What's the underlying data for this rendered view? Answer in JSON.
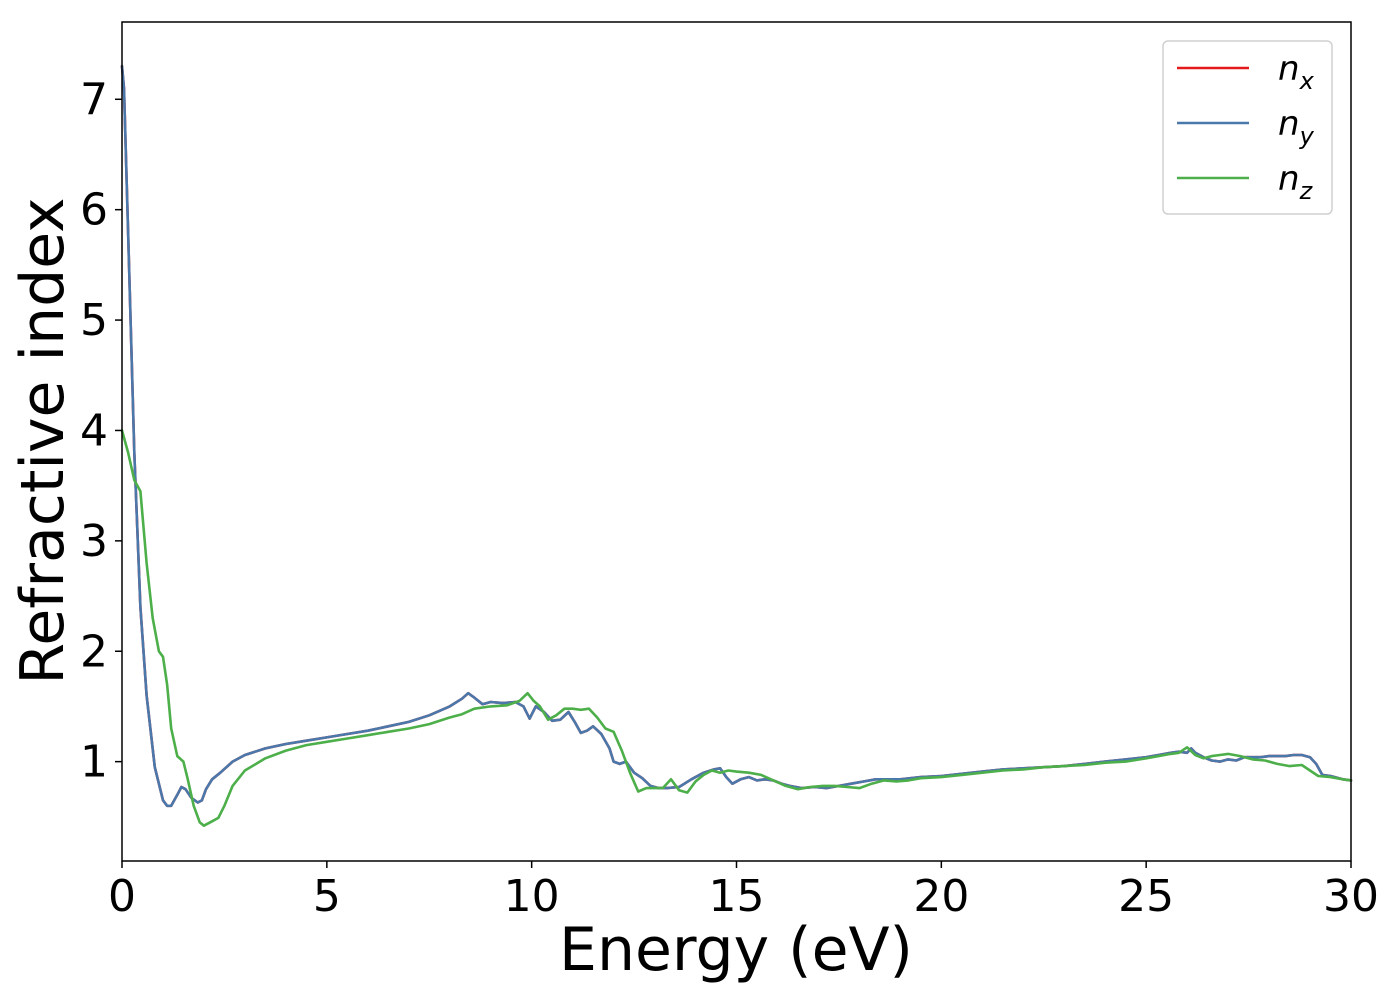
{
  "chart_data": {
    "type": "line",
    "title": "",
    "xlabel": "Energy (eV)",
    "ylabel": "Refractive index",
    "xlim": [
      0,
      30
    ],
    "ylim": [
      0.1,
      7.7
    ],
    "xticks": [
      0,
      5,
      10,
      15,
      20,
      25,
      30
    ],
    "xtick_labels": [
      "0",
      "5",
      "10",
      "15",
      "20",
      "25",
      "30"
    ],
    "yticks": [
      1,
      2,
      3,
      4,
      5,
      6,
      7
    ],
    "ytick_labels": [
      "1",
      "2",
      "3",
      "4",
      "5",
      "6",
      "7"
    ],
    "grid": false,
    "legend_position": "top-right",
    "series": [
      {
        "name": "n_x",
        "legend_main": "n",
        "legend_sub": "x",
        "color": "#e41a1c",
        "x": [
          0,
          0.05,
          0.15,
          0.3,
          0.45,
          0.6,
          0.8,
          1.0,
          1.1,
          1.2,
          1.35,
          1.45,
          1.55,
          1.7,
          1.85,
          1.95,
          2.05,
          2.2,
          2.4,
          2.7,
          3.0,
          3.5,
          4.0,
          4.5,
          5.0,
          5.5,
          6.0,
          6.5,
          7.0,
          7.5,
          8.0,
          8.3,
          8.45,
          8.6,
          8.8,
          9.0,
          9.3,
          9.6,
          9.8,
          9.95,
          10.1,
          10.3,
          10.5,
          10.7,
          10.9,
          11.05,
          11.2,
          11.35,
          11.5,
          11.7,
          11.9,
          12.0,
          12.15,
          12.3,
          12.5,
          12.7,
          12.9,
          13.1,
          13.3,
          13.6,
          13.9,
          14.2,
          14.45,
          14.6,
          14.75,
          14.9,
          15.1,
          15.3,
          15.5,
          15.7,
          15.9,
          16.1,
          16.3,
          16.6,
          16.9,
          17.2,
          17.5,
          17.8,
          18.1,
          18.4,
          18.7,
          19.0,
          19.5,
          20.0,
          20.5,
          21.0,
          21.5,
          22.0,
          22.5,
          23.0,
          23.5,
          24.0,
          24.5,
          25.0,
          25.3,
          25.6,
          25.8,
          26.0,
          26.1,
          26.2,
          26.4,
          26.6,
          26.8,
          27.0,
          27.2,
          27.4,
          27.6,
          27.8,
          28.0,
          28.2,
          28.4,
          28.6,
          28.8,
          29.0,
          29.15,
          29.3,
          29.5,
          29.8,
          30.0
        ],
        "y": [
          7.3,
          7.1,
          5.8,
          3.8,
          2.4,
          1.6,
          0.95,
          0.65,
          0.6,
          0.6,
          0.7,
          0.77,
          0.75,
          0.67,
          0.63,
          0.65,
          0.75,
          0.84,
          0.9,
          1.0,
          1.06,
          1.12,
          1.16,
          1.19,
          1.22,
          1.25,
          1.28,
          1.32,
          1.36,
          1.42,
          1.5,
          1.57,
          1.62,
          1.58,
          1.52,
          1.54,
          1.53,
          1.54,
          1.5,
          1.39,
          1.5,
          1.45,
          1.37,
          1.38,
          1.45,
          1.36,
          1.26,
          1.28,
          1.32,
          1.25,
          1.12,
          1.0,
          0.98,
          1.0,
          0.9,
          0.85,
          0.78,
          0.76,
          0.76,
          0.77,
          0.84,
          0.9,
          0.93,
          0.94,
          0.86,
          0.8,
          0.84,
          0.86,
          0.83,
          0.84,
          0.83,
          0.8,
          0.78,
          0.76,
          0.77,
          0.76,
          0.78,
          0.8,
          0.82,
          0.84,
          0.84,
          0.84,
          0.86,
          0.87,
          0.89,
          0.91,
          0.93,
          0.94,
          0.95,
          0.96,
          0.98,
          1.0,
          1.02,
          1.04,
          1.06,
          1.08,
          1.09,
          1.08,
          1.12,
          1.08,
          1.04,
          1.01,
          1.0,
          1.02,
          1.01,
          1.04,
          1.04,
          1.04,
          1.05,
          1.05,
          1.05,
          1.06,
          1.06,
          1.04,
          0.98,
          0.88,
          0.87,
          0.84,
          0.83
        ]
      },
      {
        "name": "n_y",
        "legend_main": "n",
        "legend_sub": "y",
        "color": "#4a78aa",
        "x": [
          0,
          0.05,
          0.15,
          0.3,
          0.45,
          0.6,
          0.8,
          1.0,
          1.1,
          1.2,
          1.35,
          1.45,
          1.55,
          1.7,
          1.85,
          1.95,
          2.05,
          2.2,
          2.4,
          2.7,
          3.0,
          3.5,
          4.0,
          4.5,
          5.0,
          5.5,
          6.0,
          6.5,
          7.0,
          7.5,
          8.0,
          8.3,
          8.45,
          8.6,
          8.8,
          9.0,
          9.3,
          9.6,
          9.8,
          9.95,
          10.1,
          10.3,
          10.5,
          10.7,
          10.9,
          11.05,
          11.2,
          11.35,
          11.5,
          11.7,
          11.9,
          12.0,
          12.15,
          12.3,
          12.5,
          12.7,
          12.9,
          13.1,
          13.3,
          13.6,
          13.9,
          14.2,
          14.45,
          14.6,
          14.75,
          14.9,
          15.1,
          15.3,
          15.5,
          15.7,
          15.9,
          16.1,
          16.3,
          16.6,
          16.9,
          17.2,
          17.5,
          17.8,
          18.1,
          18.4,
          18.7,
          19.0,
          19.5,
          20.0,
          20.5,
          21.0,
          21.5,
          22.0,
          22.5,
          23.0,
          23.5,
          24.0,
          24.5,
          25.0,
          25.3,
          25.6,
          25.8,
          26.0,
          26.1,
          26.2,
          26.4,
          26.6,
          26.8,
          27.0,
          27.2,
          27.4,
          27.6,
          27.8,
          28.0,
          28.2,
          28.4,
          28.6,
          28.8,
          29.0,
          29.15,
          29.3,
          29.5,
          29.8,
          30.0
        ],
        "y": [
          7.3,
          7.1,
          5.8,
          3.8,
          2.4,
          1.6,
          0.95,
          0.65,
          0.6,
          0.6,
          0.7,
          0.77,
          0.75,
          0.67,
          0.63,
          0.65,
          0.75,
          0.84,
          0.9,
          1.0,
          1.06,
          1.12,
          1.16,
          1.19,
          1.22,
          1.25,
          1.28,
          1.32,
          1.36,
          1.42,
          1.5,
          1.57,
          1.62,
          1.58,
          1.52,
          1.54,
          1.53,
          1.54,
          1.5,
          1.39,
          1.5,
          1.45,
          1.37,
          1.38,
          1.45,
          1.36,
          1.26,
          1.28,
          1.32,
          1.25,
          1.12,
          1.0,
          0.98,
          1.0,
          0.9,
          0.85,
          0.78,
          0.76,
          0.76,
          0.77,
          0.84,
          0.9,
          0.93,
          0.94,
          0.86,
          0.8,
          0.84,
          0.86,
          0.83,
          0.84,
          0.83,
          0.8,
          0.78,
          0.76,
          0.77,
          0.76,
          0.78,
          0.8,
          0.82,
          0.84,
          0.84,
          0.84,
          0.86,
          0.87,
          0.89,
          0.91,
          0.93,
          0.94,
          0.95,
          0.96,
          0.98,
          1.0,
          1.02,
          1.04,
          1.06,
          1.08,
          1.09,
          1.08,
          1.12,
          1.08,
          1.04,
          1.01,
          1.0,
          1.02,
          1.01,
          1.04,
          1.04,
          1.04,
          1.05,
          1.05,
          1.05,
          1.06,
          1.06,
          1.04,
          0.98,
          0.88,
          0.87,
          0.84,
          0.83
        ]
      },
      {
        "name": "n_z",
        "legend_main": "n",
        "legend_sub": "z",
        "color": "#4daf4a",
        "x": [
          0,
          0.15,
          0.3,
          0.45,
          0.6,
          0.75,
          0.9,
          1.0,
          1.1,
          1.2,
          1.35,
          1.5,
          1.6,
          1.75,
          1.9,
          2.0,
          2.2,
          2.35,
          2.5,
          2.7,
          3.0,
          3.5,
          4.0,
          4.5,
          5.0,
          5.5,
          6.0,
          6.5,
          7.0,
          7.5,
          8.0,
          8.3,
          8.6,
          9.0,
          9.4,
          9.7,
          9.9,
          10.05,
          10.2,
          10.4,
          10.6,
          10.8,
          11.0,
          11.2,
          11.4,
          11.6,
          11.8,
          12.0,
          12.2,
          12.4,
          12.6,
          12.8,
          13.0,
          13.2,
          13.4,
          13.6,
          13.8,
          14.0,
          14.2,
          14.4,
          14.6,
          14.8,
          15.0,
          15.3,
          15.6,
          15.9,
          16.2,
          16.5,
          16.8,
          17.1,
          17.4,
          17.7,
          18.0,
          18.3,
          18.6,
          18.9,
          19.2,
          19.5,
          20.0,
          20.5,
          21.0,
          21.5,
          22.0,
          22.5,
          23.0,
          23.5,
          24.0,
          24.5,
          25.0,
          25.3,
          25.6,
          25.8,
          26.0,
          26.2,
          26.4,
          26.6,
          26.8,
          27.0,
          27.3,
          27.6,
          27.9,
          28.2,
          28.5,
          28.8,
          29.0,
          29.2,
          29.5,
          29.8,
          30.0
        ],
        "y": [
          4.0,
          3.8,
          3.55,
          3.45,
          2.8,
          2.3,
          2.0,
          1.95,
          1.7,
          1.3,
          1.05,
          1.0,
          0.85,
          0.6,
          0.45,
          0.42,
          0.46,
          0.49,
          0.6,
          0.78,
          0.92,
          1.03,
          1.1,
          1.15,
          1.18,
          1.21,
          1.24,
          1.27,
          1.3,
          1.34,
          1.4,
          1.43,
          1.48,
          1.5,
          1.51,
          1.55,
          1.62,
          1.55,
          1.5,
          1.38,
          1.42,
          1.48,
          1.48,
          1.47,
          1.48,
          1.4,
          1.3,
          1.27,
          1.1,
          0.9,
          0.73,
          0.76,
          0.76,
          0.76,
          0.84,
          0.74,
          0.72,
          0.82,
          0.88,
          0.92,
          0.9,
          0.92,
          0.91,
          0.9,
          0.88,
          0.83,
          0.78,
          0.75,
          0.77,
          0.78,
          0.78,
          0.77,
          0.76,
          0.8,
          0.83,
          0.82,
          0.83,
          0.85,
          0.86,
          0.88,
          0.9,
          0.92,
          0.93,
          0.95,
          0.96,
          0.97,
          0.99,
          1.0,
          1.03,
          1.05,
          1.07,
          1.08,
          1.13,
          1.06,
          1.03,
          1.05,
          1.06,
          1.07,
          1.05,
          1.02,
          1.01,
          0.98,
          0.96,
          0.97,
          0.92,
          0.87,
          0.86,
          0.84,
          0.83
        ]
      }
    ]
  }
}
